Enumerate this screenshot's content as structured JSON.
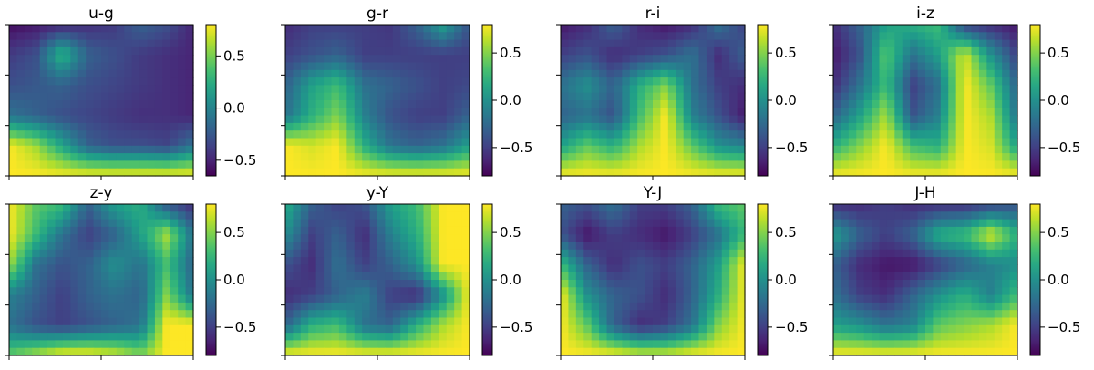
{
  "chart_data": [
    {
      "type": "heatmap",
      "title": "u-g",
      "colorbar": {
        "ticks": [
          0.5,
          0.0,
          -0.5
        ],
        "tick_labels": [
          "0.5",
          "0.0",
          "−0.5"
        ],
        "range": [
          -0.65,
          0.8
        ]
      },
      "grid": {
        "rows": 6,
        "cols": 8,
        "values": [
          [
            -0.6,
            -0.55,
            -0.5,
            -0.45,
            -0.4,
            -0.2,
            -0.3,
            -0.5
          ],
          [
            -0.4,
            -0.3,
            0.3,
            -0.2,
            -0.3,
            -0.4,
            -0.45,
            -0.5
          ],
          [
            -0.3,
            -0.25,
            -0.2,
            -0.3,
            -0.35,
            -0.4,
            -0.45,
            -0.5
          ],
          [
            -0.1,
            -0.2,
            -0.3,
            -0.35,
            -0.4,
            -0.45,
            -0.45,
            -0.5
          ],
          [
            0.8,
            0.6,
            0.2,
            -0.2,
            -0.3,
            -0.3,
            -0.35,
            -0.1
          ],
          [
            0.8,
            0.8,
            0.8,
            0.8,
            0.8,
            0.8,
            0.8,
            0.8
          ]
        ]
      }
    },
    {
      "type": "heatmap",
      "title": "g-r",
      "colorbar": {
        "ticks": [
          0.5,
          0.0,
          -0.5
        ],
        "tick_labels": [
          "0.5",
          "0.0",
          "−0.5"
        ],
        "range": [
          -0.8,
          0.8
        ]
      },
      "grid": {
        "rows": 6,
        "cols": 8,
        "values": [
          [
            -0.6,
            -0.5,
            -0.5,
            -0.5,
            -0.55,
            -0.3,
            0.1,
            -0.4
          ],
          [
            -0.5,
            -0.4,
            -0.3,
            -0.5,
            -0.5,
            -0.5,
            -0.5,
            -0.5
          ],
          [
            -0.3,
            0.1,
            0.3,
            -0.2,
            -0.3,
            -0.4,
            -0.5,
            -0.45
          ],
          [
            -0.2,
            0.2,
            0.5,
            -0.1,
            -0.4,
            -0.5,
            -0.5,
            -0.3
          ],
          [
            0.8,
            0.7,
            0.8,
            0.2,
            -0.2,
            -0.3,
            -0.2,
            0.1
          ],
          [
            0.8,
            0.8,
            0.8,
            0.8,
            0.8,
            0.8,
            0.8,
            0.8
          ]
        ]
      }
    },
    {
      "type": "heatmap",
      "title": "r-i",
      "colorbar": {
        "ticks": [
          0.5,
          0.0,
          -0.5
        ],
        "tick_labels": [
          "0.5",
          "0.0",
          "−0.5"
        ],
        "range": [
          -0.8,
          0.8
        ]
      },
      "grid": {
        "rows": 6,
        "cols": 8,
        "values": [
          [
            -0.7,
            -0.6,
            -0.3,
            -0.6,
            -0.7,
            -0.6,
            -0.2,
            -0.5
          ],
          [
            -0.5,
            -0.4,
            -0.6,
            -0.5,
            -0.4,
            -0.2,
            -0.6,
            -0.3
          ],
          [
            -0.2,
            0.0,
            -0.3,
            0.2,
            0.5,
            -0.2,
            -0.5,
            -0.6
          ],
          [
            -0.3,
            -0.2,
            -0.4,
            0.3,
            0.8,
            -0.1,
            -0.4,
            -0.7
          ],
          [
            0.1,
            0.4,
            0.2,
            0.6,
            0.8,
            0.4,
            0.0,
            -0.1
          ],
          [
            0.8,
            0.8,
            0.8,
            0.8,
            0.8,
            0.8,
            0.8,
            0.8
          ]
        ]
      }
    },
    {
      "type": "heatmap",
      "title": "i-z",
      "colorbar": {
        "ticks": [
          0.5,
          0.0,
          -0.5
        ],
        "tick_labels": [
          "0.5",
          "0.0",
          "−0.5"
        ],
        "range": [
          -0.8,
          0.8
        ]
      },
      "grid": {
        "rows": 6,
        "cols": 8,
        "values": [
          [
            -0.6,
            -0.3,
            0.1,
            0.2,
            0.3,
            -0.5,
            -0.6,
            -0.7
          ],
          [
            -0.7,
            -0.4,
            0.4,
            -0.2,
            0.1,
            0.7,
            0.0,
            -0.5
          ],
          [
            -0.6,
            -0.2,
            0.3,
            -0.5,
            -0.2,
            0.8,
            0.4,
            -0.3
          ],
          [
            -0.3,
            0.1,
            0.6,
            -0.4,
            -0.1,
            0.8,
            0.6,
            -0.2
          ],
          [
            0.2,
            0.5,
            0.8,
            0.3,
            0.2,
            0.8,
            0.7,
            0.1
          ],
          [
            0.8,
            0.8,
            0.8,
            0.8,
            0.8,
            0.8,
            0.8,
            0.8
          ]
        ]
      }
    },
    {
      "type": "heatmap",
      "title": "z-y",
      "colorbar": {
        "ticks": [
          0.5,
          0.0,
          -0.5
        ],
        "tick_labels": [
          "0.5",
          "0.0",
          "−0.5"
        ],
        "range": [
          -0.8,
          0.8
        ]
      },
      "grid": {
        "rows": 6,
        "cols": 8,
        "values": [
          [
            0.8,
            0.4,
            0.3,
            -0.3,
            0.1,
            0.2,
            -0.4,
            -0.6
          ],
          [
            0.8,
            0.3,
            -0.2,
            -0.5,
            -0.3,
            0.1,
            0.6,
            -0.2
          ],
          [
            0.6,
            -0.2,
            -0.4,
            -0.3,
            0.0,
            -0.2,
            0.3,
            -0.3
          ],
          [
            -0.1,
            -0.3,
            -0.5,
            -0.3,
            -0.2,
            -0.3,
            0.5,
            -0.2
          ],
          [
            -0.2,
            -0.4,
            -0.5,
            -0.4,
            -0.3,
            -0.2,
            0.8,
            0.8
          ],
          [
            0.4,
            0.6,
            0.8,
            0.8,
            0.7,
            0.5,
            0.8,
            0.8
          ]
        ]
      }
    },
    {
      "type": "heatmap",
      "title": "y-Y",
      "colorbar": {
        "ticks": [
          0.5,
          0.0,
          -0.5
        ],
        "tick_labels": [
          "0.5",
          "0.0",
          "−0.5"
        ],
        "range": [
          -0.8,
          0.8
        ]
      },
      "grid": {
        "rows": 6,
        "cols": 8,
        "values": [
          [
            0.2,
            -0.3,
            -0.5,
            -0.4,
            0.1,
            0.3,
            0.8,
            0.8
          ],
          [
            0.0,
            -0.5,
            -0.3,
            -0.6,
            -0.1,
            0.2,
            0.8,
            0.8
          ],
          [
            -0.4,
            -0.6,
            -0.2,
            -0.5,
            -0.3,
            0.0,
            0.8,
            0.8
          ],
          [
            -0.6,
            -0.5,
            -0.3,
            -0.1,
            -0.5,
            -0.6,
            0.0,
            0.8
          ],
          [
            -0.3,
            0.2,
            0.3,
            -0.2,
            -0.3,
            0.2,
            0.6,
            0.8
          ],
          [
            0.8,
            0.8,
            0.8,
            0.8,
            0.8,
            0.8,
            0.8,
            0.8
          ]
        ]
      }
    },
    {
      "type": "heatmap",
      "title": "Y-J",
      "colorbar": {
        "ticks": [
          0.5,
          0.0,
          -0.5
        ],
        "tick_labels": [
          "0.5",
          "0.0",
          "−0.5"
        ],
        "range": [
          -0.8,
          0.8
        ]
      },
      "grid": {
        "rows": 6,
        "cols": 8,
        "values": [
          [
            -0.3,
            -0.4,
            -0.2,
            -0.5,
            -0.5,
            -0.3,
            0.3,
            0.4
          ],
          [
            -0.4,
            -0.7,
            -0.5,
            -0.6,
            -0.7,
            -0.5,
            -0.2,
            0.3
          ],
          [
            0.3,
            -0.3,
            -0.6,
            -0.4,
            -0.5,
            -0.3,
            0.1,
            0.8
          ],
          [
            0.8,
            0.0,
            -0.3,
            -0.4,
            -0.6,
            -0.3,
            0.2,
            0.8
          ],
          [
            0.8,
            0.4,
            -0.3,
            -0.6,
            -0.5,
            -0.2,
            0.5,
            0.8
          ],
          [
            0.8,
            0.8,
            0.8,
            0.7,
            0.7,
            0.8,
            0.8,
            0.8
          ]
        ]
      }
    },
    {
      "type": "heatmap",
      "title": "J-H",
      "colorbar": {
        "ticks": [
          0.5,
          0.0,
          -0.5
        ],
        "tick_labels": [
          "0.5",
          "0.0",
          "−0.5"
        ],
        "range": [
          -0.8,
          0.8
        ]
      },
      "grid": {
        "rows": 6,
        "cols": 8,
        "values": [
          [
            -0.6,
            -0.6,
            -0.5,
            -0.6,
            -0.6,
            -0.6,
            -0.5,
            -0.4
          ],
          [
            0.1,
            -0.3,
            -0.5,
            -0.3,
            0.2,
            0.3,
            0.7,
            0.2
          ],
          [
            -0.3,
            -0.6,
            -0.7,
            -0.7,
            -0.5,
            -0.3,
            -0.1,
            0.0
          ],
          [
            -0.2,
            -0.5,
            -0.6,
            -0.3,
            0.0,
            0.2,
            -0.1,
            0.3
          ],
          [
            0.1,
            0.0,
            -0.2,
            -0.1,
            0.4,
            0.5,
            0.6,
            0.8
          ],
          [
            0.8,
            0.8,
            0.8,
            0.8,
            0.8,
            0.8,
            0.8,
            0.8
          ]
        ]
      }
    }
  ]
}
